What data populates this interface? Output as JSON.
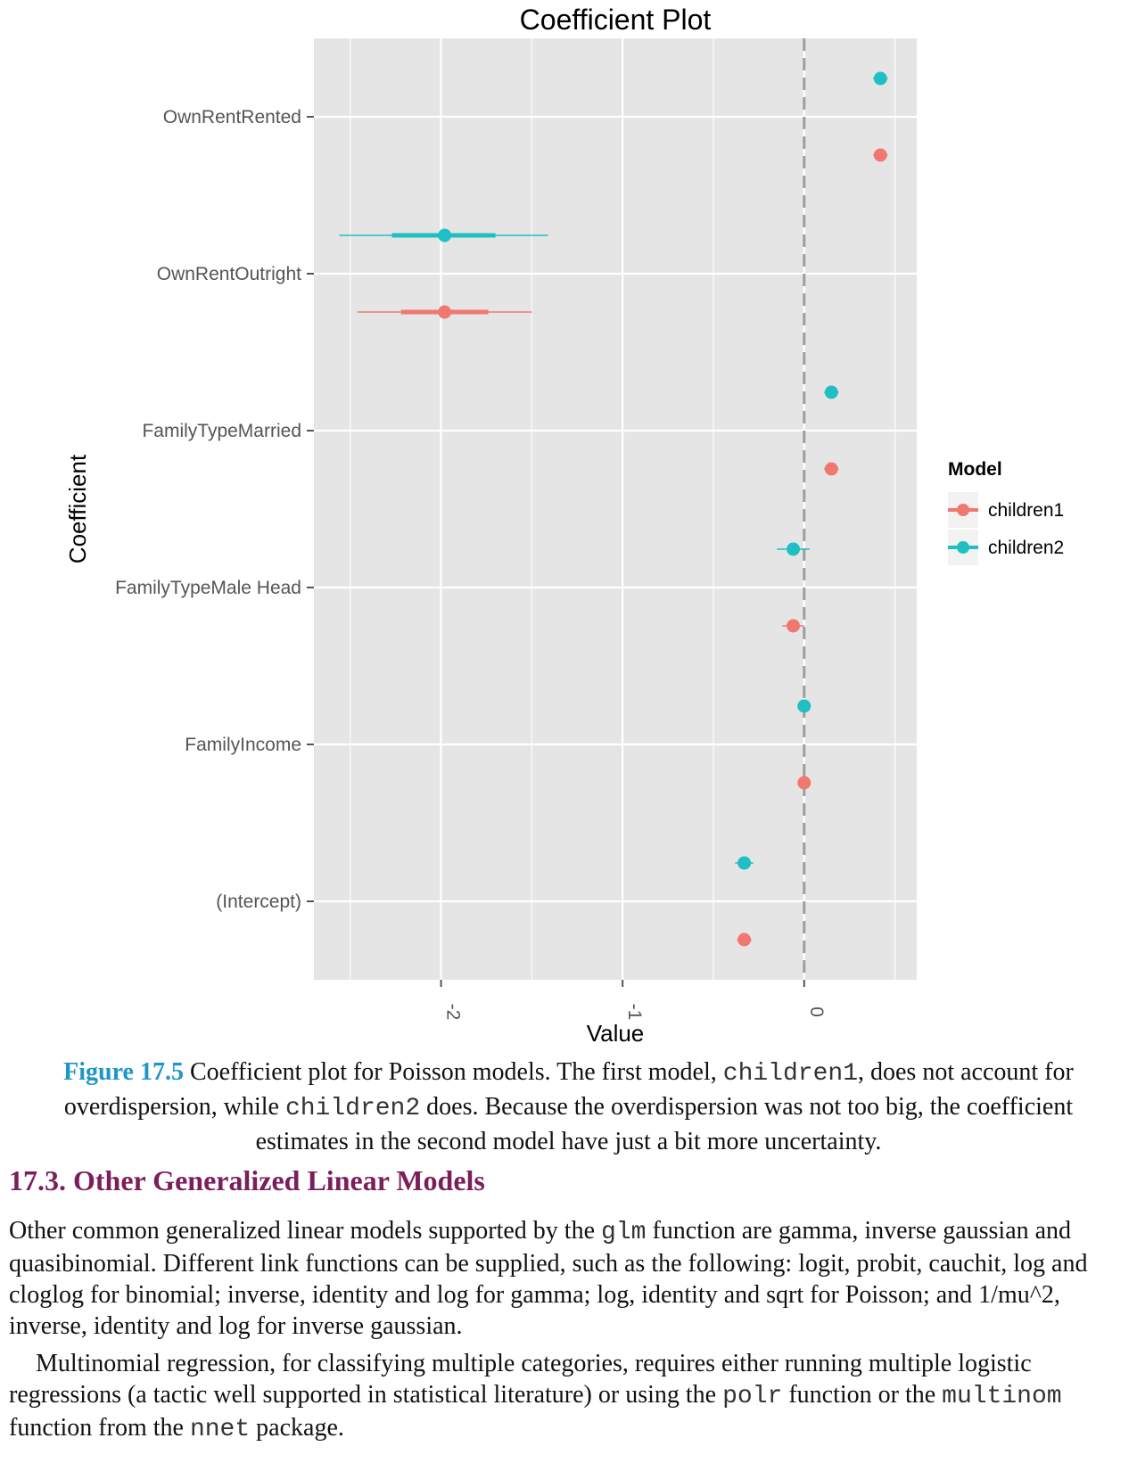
{
  "chart_data": {
    "type": "scatter",
    "subtype": "coefficient-plot",
    "title": "Coefficient Plot",
    "xlabel": "Value",
    "ylabel": "Coefficient",
    "xlim": [
      -2.7,
      0.62
    ],
    "x_ticks": [
      -2,
      -1,
      0
    ],
    "x_tick_labels": [
      "-2",
      "-1",
      "0"
    ],
    "reference_line": 0,
    "categories": [
      "OwnRentRented",
      "OwnRentOutright",
      "FamilyTypeMarried",
      "FamilyTypeMale Head",
      "FamilyIncome",
      "(Intercept)"
    ],
    "legend": {
      "title": "Model",
      "position": "right"
    },
    "series": [
      {
        "name": "children1",
        "color": "#f07870",
        "values": [
          0.42,
          -1.98,
          0.15,
          -0.06,
          0.0,
          -0.33
        ],
        "inner": [
          [
            0.4,
            0.44
          ],
          [
            -2.22,
            -1.74
          ],
          [
            0.13,
            0.17
          ],
          [
            -0.08,
            -0.04
          ],
          [
            -0.005,
            0.005
          ],
          [
            -0.35,
            -0.31
          ]
        ],
        "outer": [
          [
            0.38,
            0.46
          ],
          [
            -2.46,
            -1.5
          ],
          [
            0.11,
            0.19
          ],
          [
            -0.12,
            0.0
          ],
          [
            -0.01,
            0.01
          ],
          [
            -0.37,
            -0.29
          ]
        ]
      },
      {
        "name": "children2",
        "color": "#1fbfc4",
        "values": [
          0.42,
          -1.98,
          0.15,
          -0.06,
          0.0,
          -0.33
        ],
        "inner": [
          [
            0.4,
            0.44
          ],
          [
            -2.27,
            -1.7
          ],
          [
            0.13,
            0.17
          ],
          [
            -0.09,
            -0.03
          ],
          [
            -0.005,
            0.005
          ],
          [
            -0.36,
            -0.3
          ]
        ],
        "outer": [
          [
            0.38,
            0.46
          ],
          [
            -2.56,
            -1.41
          ],
          [
            0.11,
            0.19
          ],
          [
            -0.15,
            0.03
          ],
          [
            -0.01,
            0.01
          ],
          [
            -0.38,
            -0.28
          ]
        ]
      }
    ],
    "grid": true
  },
  "caption": {
    "label": "Figure 17.5",
    "text_a": " Coefficient plot for Poisson models. The first model, ",
    "code_a": "children1",
    "text_b": ", does not account for overdispersion, while ",
    "code_b": "children2",
    "text_c": " does. Because the overdispersion was not too big, the coefficient estimates in the second model have just a bit more uncertainty."
  },
  "section": {
    "heading": "17.3. Other Generalized Linear Models"
  },
  "paragraph1": {
    "text_a": "Other common generalized linear models supported by the ",
    "code_a": "glm",
    "text_b": " function are gamma, inverse gaussian and quasibinomial. Different link functions can be supplied, such as the following: logit, probit, cauchit, log and cloglog for binomial; inverse, identity and log for gamma; log, identity and sqrt for Poisson; and 1/mu^2, inverse, identity and log for inverse gaussian."
  },
  "paragraph2": {
    "text_a": "Multinomial regression, for classifying multiple categories, requires either running multiple logistic regressions (a tactic well supported in statistical literature) or using the ",
    "code_a": "polr",
    "text_b": " function or the ",
    "code_b": "multinom",
    "text_c": " function from the ",
    "code_c": "nnet",
    "text_d": " package."
  }
}
